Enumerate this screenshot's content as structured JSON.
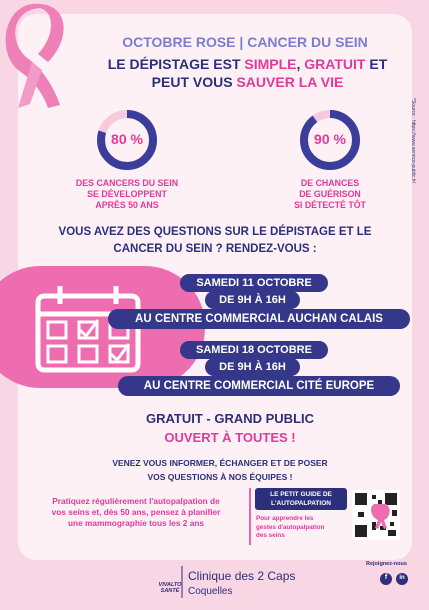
{
  "header": {
    "title": "OCTOBRE ROSE | CANCER DU SEIN",
    "headline": [
      "LE DÉPISTAGE EST ",
      "SIMPLE",
      ", ",
      "GRATUIT",
      " ET",
      "PEUT VOUS ",
      "SAUVER LA VIE"
    ]
  },
  "stats": [
    {
      "value": 80,
      "label": "80 %",
      "caption": [
        "DES CANCERS DU SEIN",
        "SE DÉVELOPPENT",
        "APRÈS 50 ANS"
      ]
    },
    {
      "value": 90,
      "label": "90 %",
      "caption": [
        "DE CHANCES",
        "DE GUÉRISON",
        "SI DÉTECTÉ TÔT"
      ]
    }
  ],
  "source": "*Source : https://www.service-public.fr/",
  "question": [
    "VOUS AVEZ DES QUESTIONS SUR LE DÉPISTAGE ET LE",
    "CANCER DU SEIN ? RENDEZ-VOUS  :"
  ],
  "events": [
    {
      "date": "SAMEDI 11 OCTOBRE",
      "time": "DE 9H À 16H",
      "place": "AU CENTRE COMMERCIAL AUCHAN CALAIS"
    },
    {
      "date": "SAMEDI 18 OCTOBRE",
      "time": "DE 9H À 16H",
      "place": "AU CENTRE COMMERCIAL CITÉ EUROPE"
    }
  ],
  "offer": {
    "line1": "GRATUIT - GRAND PUBLIC",
    "line2": "OUVERT À TOUTES !"
  },
  "invite": [
    "VENEZ VOUS INFORMER, ÉCHANGER ET DE POSER",
    "VOS QUESTIONS À NOS ÉQUIPES !"
  ],
  "advice": [
    "Pratiquez régulièrement l'autopalpation de",
    "vos seins et, dès 50 ans, pensez à planifier",
    "une mammographie tous les 2 ans"
  ],
  "guide": {
    "title": [
      "LE PETIT GUIDE DE",
      "L'AUTOPALPATION"
    ],
    "text": [
      "Pour apprendre les",
      "gestes d'autopalpation",
      "des seins"
    ]
  },
  "footer": {
    "logo": [
      "VIVALTO",
      "SANTÉ"
    ],
    "clinic": "Clinique des 2 Caps",
    "city": "Coquelles",
    "social": "Rejoignez-nous",
    "icons": [
      "f",
      "in"
    ]
  }
}
